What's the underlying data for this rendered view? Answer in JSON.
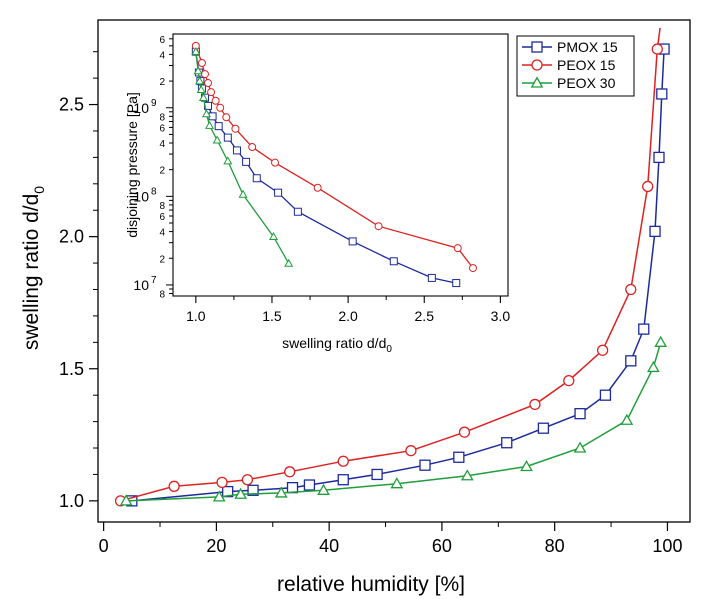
{
  "chart_data": [
    {
      "type": "line",
      "xlabel": "relative humidity [%]",
      "ylabel": "swelling ratio d/d",
      "ylabel_sub": "0",
      "xlim": [
        -1,
        104
      ],
      "ylim": [
        0.92,
        2.82
      ],
      "x_ticks": [
        0,
        20,
        40,
        60,
        80,
        100
      ],
      "x_tick_labels": [
        "0",
        "20",
        "40",
        "60",
        "80",
        "100"
      ],
      "y_ticks": [
        1.0,
        1.5,
        2.0,
        2.5
      ],
      "y_tick_labels": [
        "1.0",
        "1.5",
        "2.0",
        "2.5"
      ],
      "legend": {
        "position": "top-right"
      },
      "series": [
        {
          "name": "PMOX 15",
          "color": "#1c2a9c",
          "marker": "square",
          "points": [
            [
              5,
              1.0
            ],
            [
              22,
              1.035
            ],
            [
              26.5,
              1.04
            ],
            [
              33.5,
              1.05
            ],
            [
              36.5,
              1.06
            ],
            [
              42.5,
              1.08
            ],
            [
              48.5,
              1.1
            ],
            [
              57,
              1.135
            ],
            [
              63,
              1.165
            ],
            [
              71.5,
              1.22
            ],
            [
              78,
              1.275
            ],
            [
              84.5,
              1.33
            ],
            [
              89,
              1.4
            ],
            [
              93.5,
              1.53
            ],
            [
              95.8,
              1.65
            ],
            [
              97.8,
              2.02
            ],
            [
              98.5,
              2.3
            ],
            [
              99,
              2.54
            ],
            [
              99.4,
              2.71
            ]
          ],
          "line_extra": []
        },
        {
          "name": "PEOX 15",
          "color": "#dd2222",
          "marker": "circle",
          "points": [
            [
              3,
              1.0
            ],
            [
              12.5,
              1.055
            ],
            [
              21,
              1.07
            ],
            [
              25.5,
              1.08
            ],
            [
              33,
              1.11
            ],
            [
              42.5,
              1.15
            ],
            [
              54.5,
              1.19
            ],
            [
              64,
              1.26
            ],
            [
              76.5,
              1.365
            ],
            [
              82.5,
              1.455
            ],
            [
              88.5,
              1.57
            ],
            [
              93.5,
              1.8
            ],
            [
              96.5,
              2.19
            ],
            [
              98.2,
              2.71
            ]
          ],
          "line_extra": [
            [
              98.7,
              2.79
            ]
          ]
        },
        {
          "name": "PEOX 30",
          "color": "#1f9e3a",
          "marker": "triangle",
          "points": [
            [
              4,
              1.0
            ],
            [
              20.5,
              1.015
            ],
            [
              24.3,
              1.025
            ],
            [
              31.5,
              1.03
            ],
            [
              39,
              1.04
            ],
            [
              52,
              1.065
            ],
            [
              64.5,
              1.095
            ],
            [
              75,
              1.13
            ],
            [
              84.5,
              1.2
            ],
            [
              92.8,
              1.305
            ],
            [
              97.5,
              1.505
            ],
            [
              98.8,
              1.6
            ]
          ],
          "line_extra": []
        }
      ]
    },
    {
      "type": "line",
      "scale_y": "log",
      "xlabel": "swelling ratio d/d",
      "xlabel_sub": "0",
      "ylabel": "disjoining pressure [Pa]",
      "xlim": [
        0.85,
        3.05
      ],
      "ylim": [
        7500000.0,
        6800000000.0
      ],
      "x_ticks": [
        1.0,
        1.5,
        2.0,
        2.5,
        3.0
      ],
      "x_tick_labels": [
        "1.0",
        "1.5",
        "2.0",
        "2.5",
        "3.0"
      ],
      "y_decades": [
        {
          "value": 10000000.0,
          "mantissa": "10",
          "exponent": "7"
        },
        {
          "value": 100000000.0,
          "mantissa": "10",
          "exponent": "8"
        },
        {
          "value": 1000000000.0,
          "mantissa": "10",
          "exponent": "9"
        }
      ],
      "y_minor_labels": [
        {
          "value": 8000000.0,
          "label": "8"
        },
        {
          "value": 20000000.0,
          "label": "2"
        },
        {
          "value": 40000000.0,
          "label": "4"
        },
        {
          "value": 60000000.0,
          "label": "6"
        },
        {
          "value": 80000000.0,
          "label": "8"
        },
        {
          "value": 200000000.0,
          "label": "2"
        },
        {
          "value": 400000000.0,
          "label": "4"
        },
        {
          "value": 600000000.0,
          "label": "6"
        },
        {
          "value": 800000000.0,
          "label": "8"
        },
        {
          "value": 2000000000.0,
          "label": "2"
        },
        {
          "value": 4000000000.0,
          "label": "4"
        },
        {
          "value": 6000000000.0,
          "label": "6"
        }
      ],
      "series": [
        {
          "name": "PMOX 15",
          "color": "#1c2a9c",
          "marker": "square",
          "points": [
            [
              1.0,
              4300000000.0
            ],
            [
              1.02,
              2500000000.0
            ],
            [
              1.03,
              2000000000.0
            ],
            [
              1.04,
              1650000000.0
            ],
            [
              1.06,
              1300000000.0
            ],
            [
              1.08,
              1050000000.0
            ],
            [
              1.11,
              800000000.0
            ],
            [
              1.15,
              620000000.0
            ],
            [
              1.21,
              460000000.0
            ],
            [
              1.27,
              330000000.0
            ],
            [
              1.33,
              245000000.0
            ],
            [
              1.4,
              160000000.0
            ],
            [
              1.54,
              110000000.0
            ],
            [
              1.67,
              67000000.0
            ],
            [
              2.03,
              31000000.0
            ],
            [
              2.3,
              18500000.0
            ],
            [
              2.55,
              12000000.0
            ],
            [
              2.71,
              10500000.0
            ]
          ]
        },
        {
          "name": "PEOX 15",
          "color": "#dd2222",
          "marker": "circle",
          "points": [
            [
              1.0,
              5000000000.0
            ],
            [
              1.04,
              3200000000.0
            ],
            [
              1.06,
              2400000000.0
            ],
            [
              1.08,
              1900000000.0
            ],
            [
              1.1,
              1500000000.0
            ],
            [
              1.13,
              1200000000.0
            ],
            [
              1.16,
              1000000000.0
            ],
            [
              1.2,
              780000000.0
            ],
            [
              1.26,
              580000000.0
            ],
            [
              1.37,
              360000000.0
            ],
            [
              1.52,
              240000000.0
            ],
            [
              1.8,
              125000000.0
            ],
            [
              2.2,
              46000000.0
            ],
            [
              2.72,
              26000000.0
            ],
            [
              2.82,
              15500000.0
            ]
          ]
        },
        {
          "name": "PEOX 30",
          "color": "#1f9e3a",
          "marker": "triangle",
          "points": [
            [
              1.0,
              4300000000.0
            ],
            [
              1.015,
              2600000000.0
            ],
            [
              1.025,
              2000000000.0
            ],
            [
              1.035,
              1600000000.0
            ],
            [
              1.05,
              1300000000.0
            ],
            [
              1.07,
              850000000.0
            ],
            [
              1.09,
              630000000.0
            ],
            [
              1.14,
              430000000.0
            ],
            [
              1.21,
              250000000.0
            ],
            [
              1.31,
              105000000.0
            ],
            [
              1.51,
              35000000.0
            ],
            [
              1.61,
              17500000.0
            ]
          ]
        }
      ]
    }
  ]
}
